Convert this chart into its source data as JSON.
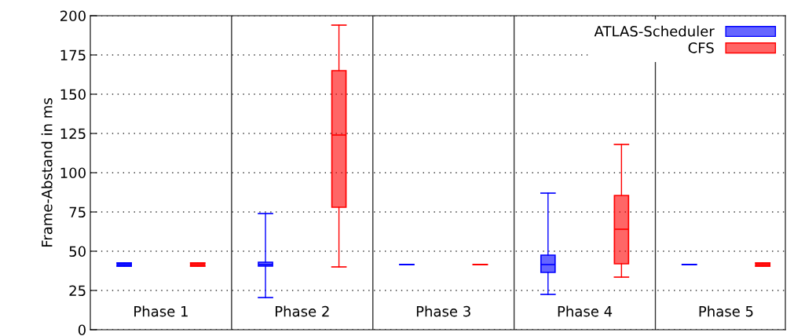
{
  "chart_data": {
    "type": "box",
    "ylabel": "Frame-Abstand in ms",
    "categories": [
      "Phase 1",
      "Phase 2",
      "Phase 3",
      "Phase 4",
      "Phase 5"
    ],
    "series": [
      {
        "name": "ATLAS-Scheduler",
        "color": "#0000ff",
        "boxes": [
          {
            "low": 40.5,
            "q1": 40.5,
            "median": 41.5,
            "q3": 42.5,
            "high": 42.5
          },
          {
            "low": 20.5,
            "q1": 40.5,
            "median": 41.5,
            "q3": 43,
            "high": 74
          },
          {
            "low": 41.5,
            "q1": 41.5,
            "median": 41.5,
            "q3": 41.5,
            "high": 41.5
          },
          {
            "low": 22.5,
            "q1": 36.5,
            "median": 41.5,
            "q3": 47.5,
            "high": 87
          },
          {
            "low": 41.5,
            "q1": 41.5,
            "median": 41.5,
            "q3": 41.5,
            "high": 41.5
          }
        ]
      },
      {
        "name": "CFS",
        "color": "#ff0000",
        "boxes": [
          {
            "low": 40.5,
            "q1": 40.5,
            "median": 41.5,
            "q3": 42.5,
            "high": 42.5
          },
          {
            "low": 40,
            "q1": 78,
            "median": 124,
            "q3": 165,
            "high": 194
          },
          {
            "low": 41.5,
            "q1": 41.5,
            "median": 41.5,
            "q3": 41.5,
            "high": 41.5
          },
          {
            "low": 33.5,
            "q1": 42,
            "median": 64,
            "q3": 85.5,
            "high": 118
          },
          {
            "low": 40.5,
            "q1": 40.5,
            "median": 41.5,
            "q3": 42.5,
            "high": 42.5
          }
        ]
      }
    ],
    "ylim": [
      0,
      200
    ],
    "yticks": [
      0,
      25,
      50,
      75,
      100,
      125,
      150,
      175,
      200
    ],
    "grid": "y",
    "legend": "top right"
  }
}
